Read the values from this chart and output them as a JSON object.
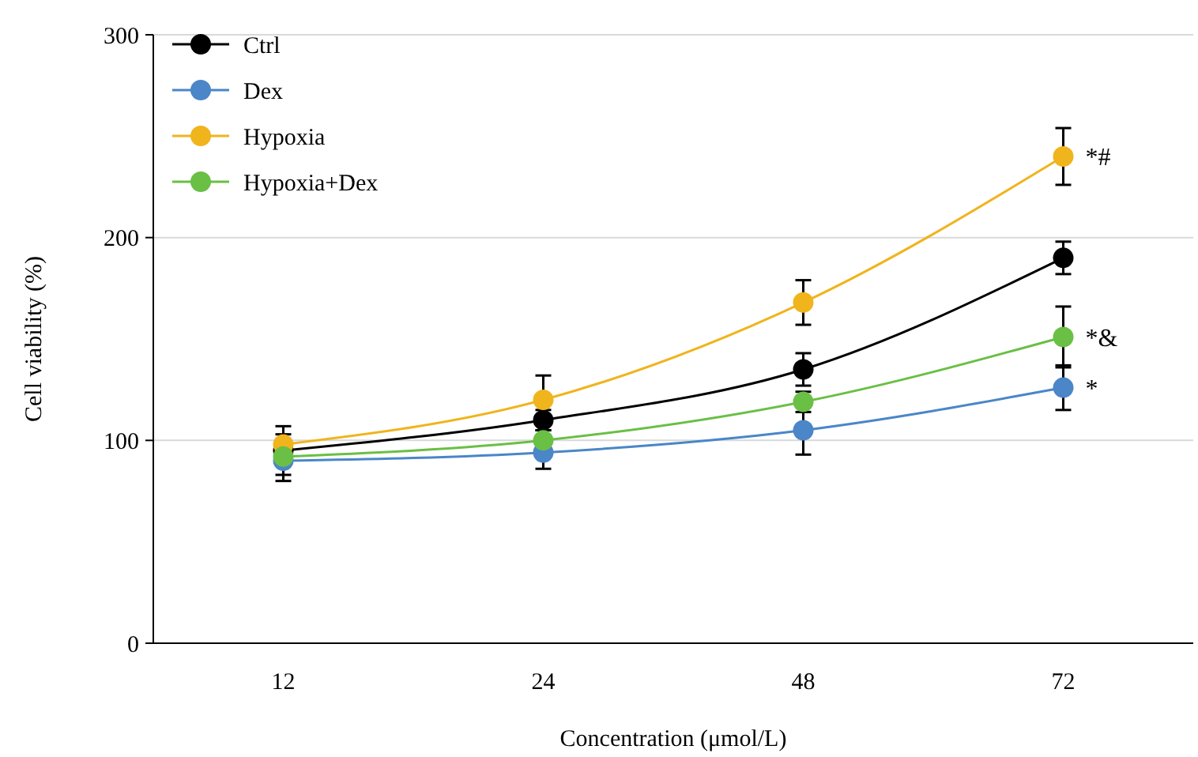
{
  "chart_data": {
    "type": "line",
    "xlabel": "Concentration (μmol/L)",
    "ylabel": "Cell viability (%)",
    "categories": [
      "12",
      "24",
      "48",
      "72"
    ],
    "ylim": [
      0,
      300
    ],
    "yticks": [
      0,
      100,
      200,
      300
    ],
    "grid": "y",
    "legend": "top left",
    "marker": "circle",
    "line_style": "solid",
    "series": [
      {
        "name": "Ctrl",
        "color": "#000000",
        "values": [
          95,
          110,
          135,
          190
        ],
        "errors": [
          12,
          5,
          8,
          8
        ]
      },
      {
        "name": "Dex",
        "color": "#4a86c8",
        "values": [
          90,
          94,
          105,
          126
        ],
        "errors": [
          10,
          8,
          12,
          11
        ]
      },
      {
        "name": "Hypoxia",
        "color": "#f0b41c",
        "values": [
          98,
          120,
          168,
          240
        ],
        "errors": [
          5,
          12,
          11,
          14
        ]
      },
      {
        "name": "Hypoxia+Dex",
        "color": "#6abf45",
        "values": [
          92,
          100,
          119,
          151
        ],
        "errors": [
          null,
          5,
          5,
          15
        ]
      }
    ],
    "annotations": [
      {
        "text": "*#",
        "x": "72",
        "y": 240
      },
      {
        "text": "*&",
        "x": "72",
        "y": 151
      },
      {
        "text": "*",
        "x": "72",
        "y": 126
      }
    ]
  }
}
